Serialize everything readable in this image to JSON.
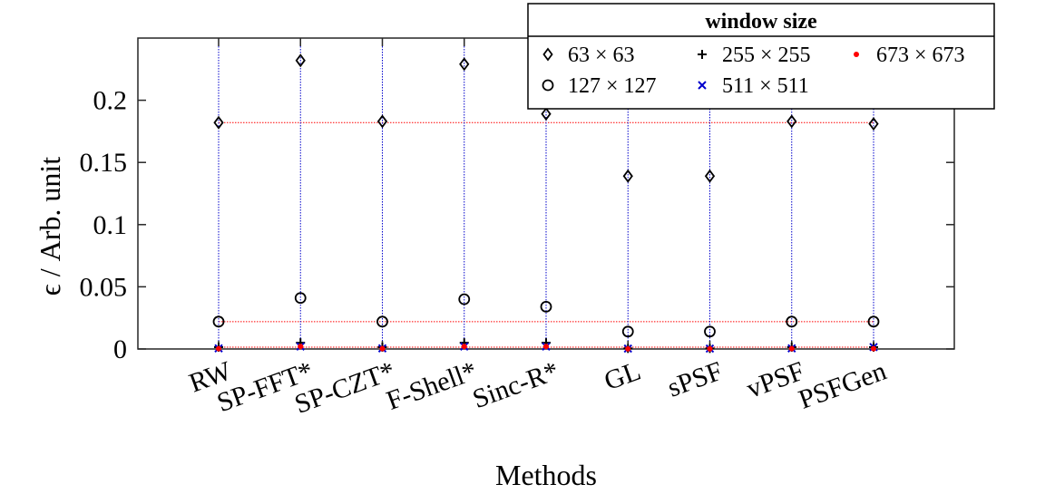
{
  "chart_data": {
    "type": "scatter",
    "title": "",
    "xlabel": "Methods",
    "ylabel": "ϵ / Arb. unit",
    "categories": [
      "RW",
      "SP-FFT*",
      "SP-CZT*",
      "F-Shell*",
      "Sinc-R*",
      "GL",
      "sPSF",
      "vPSF",
      "PSFGen"
    ],
    "ylim": [
      0,
      0.25
    ],
    "yticks": [
      0,
      0.05,
      0.1,
      0.15,
      0.2
    ],
    "ytick_labels": [
      "0",
      "0.05",
      "0.1",
      "0.15",
      "0.2"
    ],
    "grid": false,
    "legend": {
      "title": "window size",
      "placement": "top-right"
    },
    "series": [
      {
        "name": "63 × 63",
        "marker": "diamond",
        "color": "#000000",
        "values": [
          0.182,
          0.232,
          0.183,
          0.229,
          0.189,
          0.139,
          0.139,
          0.183,
          0.181
        ]
      },
      {
        "name": "127 × 127",
        "marker": "circle",
        "color": "#000000",
        "values": [
          0.022,
          0.041,
          0.022,
          0.04,
          0.034,
          0.014,
          0.014,
          0.022,
          0.022
        ]
      },
      {
        "name": "255 × 255",
        "marker": "plus",
        "color": "#000000",
        "values": [
          0.0015,
          0.005,
          0.0015,
          0.005,
          0.005,
          0.0005,
          0.0005,
          0.0015,
          0.0015
        ]
      },
      {
        "name": "511 × 511",
        "marker": "x",
        "color": "#0000cc",
        "values": [
          0.0005,
          0.002,
          0.0005,
          0.002,
          0.002,
          0.0003,
          0.0003,
          0.0005,
          0.0015
        ]
      },
      {
        "name": "673 × 673",
        "marker": "dot",
        "color": "#ff0000",
        "values": [
          0.0003,
          0.002,
          0.0003,
          0.002,
          0.002,
          0.0001,
          0.0001,
          0.0003,
          0.0003
        ]
      }
    ],
    "reference_lines": [
      {
        "orientation": "horizontal",
        "style": "dotted",
        "color": "#ff0000",
        "values": [
          0.182,
          0.022,
          0.0015
        ]
      },
      {
        "orientation": "vertical",
        "style": "dotted",
        "color": "#0000cc",
        "at": "categories"
      }
    ]
  }
}
